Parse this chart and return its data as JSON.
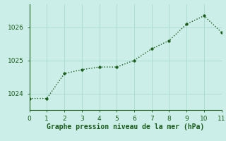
{
  "x": [
    0,
    1,
    2,
    3,
    4,
    5,
    6,
    7,
    8,
    9,
    10,
    11
  ],
  "y": [
    1023.85,
    1023.85,
    1024.6,
    1024.72,
    1024.8,
    1024.8,
    1025.0,
    1025.35,
    1025.6,
    1026.1,
    1026.35,
    1025.85
  ],
  "line_color": "#1a5c1a",
  "marker": "o",
  "marker_size": 2.5,
  "line_width": 1.0,
  "background_color": "#cceee8",
  "grid_color": "#aad8d0",
  "xlabel": "Graphe pression niveau de la mer (hPa)",
  "xlabel_color": "#1a5c1a",
  "xlabel_fontsize": 7,
  "tick_color": "#1a5c1a",
  "tick_fontsize": 6.5,
  "xlim": [
    0,
    11
  ],
  "ylim": [
    1023.5,
    1026.7
  ],
  "yticks": [
    1024,
    1025,
    1026
  ],
  "xticks": [
    0,
    1,
    2,
    3,
    4,
    5,
    6,
    7,
    8,
    9,
    10,
    11
  ]
}
